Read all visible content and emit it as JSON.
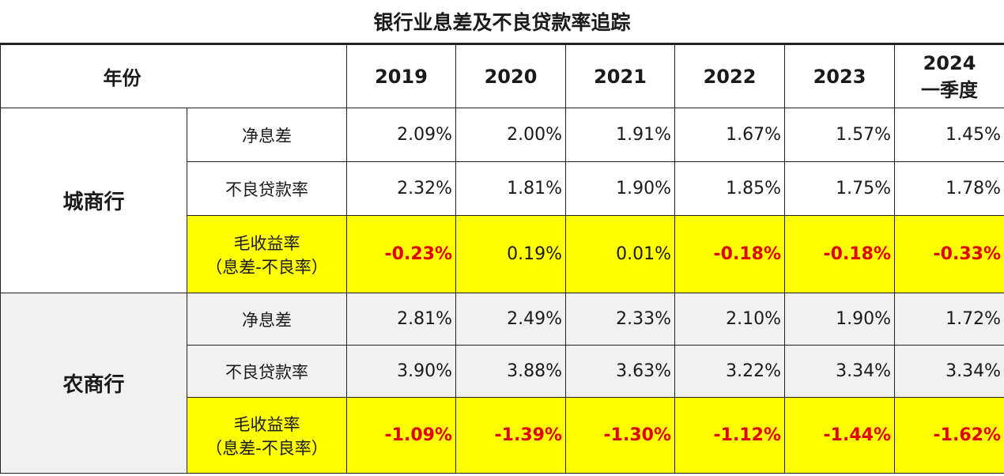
{
  "title": "银行业息差及不良贷款率追踪",
  "header": {
    "year_label": "年份",
    "years": [
      "2019",
      "2020",
      "2021",
      "2022",
      "2023"
    ],
    "last_year_line1": "2024",
    "last_year_line2": "一季度"
  },
  "groups": [
    {
      "bank": "城商行",
      "rows": [
        {
          "label": "净息差",
          "label2": "",
          "values": [
            "2.09%",
            "2.00%",
            "1.91%",
            "1.67%",
            "1.57%",
            "1.45%"
          ]
        },
        {
          "label": "不良贷款率",
          "label2": "",
          "values": [
            "2.32%",
            "1.81%",
            "1.90%",
            "1.85%",
            "1.75%",
            "1.78%"
          ]
        },
        {
          "label": "毛收益率",
          "label2": "（息差-不良率）",
          "values": [
            "-0.23%",
            "0.19%",
            "0.01%",
            "-0.18%",
            "-0.18%",
            "-0.33%"
          ]
        }
      ]
    },
    {
      "bank": "农商行",
      "rows": [
        {
          "label": "净息差",
          "label2": "",
          "values": [
            "2.81%",
            "2.49%",
            "2.33%",
            "2.10%",
            "1.90%",
            "1.72%"
          ]
        },
        {
          "label": "不良贷款率",
          "label2": "",
          "values": [
            "3.90%",
            "3.88%",
            "3.63%",
            "3.22%",
            "3.34%",
            "3.34%"
          ]
        },
        {
          "label": "毛收益率",
          "label2": "（息差-不良率）",
          "values": [
            "-1.09%",
            "-1.39%",
            "-1.30%",
            "-1.12%",
            "-1.44%",
            "-1.62%"
          ]
        }
      ]
    }
  ],
  "colors": {
    "highlight": "#ffff00",
    "negative_text": "#e00000"
  }
}
